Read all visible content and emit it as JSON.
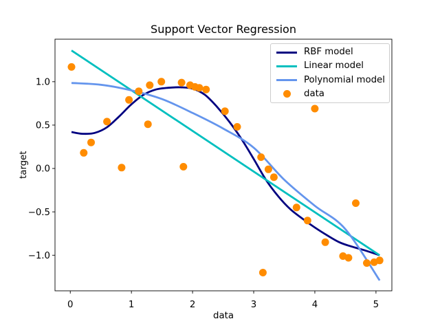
{
  "chart_data": {
    "type": "line+scatter",
    "title": "Support Vector Regression",
    "xlabel": "data",
    "ylabel": "target",
    "xlim": [
      -0.25,
      5.26
    ],
    "ylim": [
      -1.41,
      1.49
    ],
    "xticks": [
      0,
      1,
      2,
      3,
      4,
      5
    ],
    "xtick_labels": [
      "0",
      "1",
      "2",
      "3",
      "4",
      "5"
    ],
    "yticks": [
      -1.0,
      -0.5,
      0.0,
      0.5,
      1.0
    ],
    "ytick_labels": [
      "−1.0",
      "−0.5",
      "0.0",
      "0.5",
      "1.0"
    ],
    "grid": false,
    "background_color": "#ffffff",
    "spine_color": "#000000",
    "legend": {
      "position": "upper right",
      "border_color": "#cccccc",
      "entries": [
        "RBF model",
        "Linear model",
        "Polynomial model",
        "data"
      ]
    },
    "series": [
      {
        "name": "RBF model",
        "color": "#000080",
        "x": [
          0.02,
          0.2,
          0.4,
          0.6,
          0.8,
          1.0,
          1.2,
          1.4,
          1.6,
          1.8,
          2.0,
          2.2,
          2.4,
          2.6,
          2.8,
          3.0,
          3.2,
          3.4,
          3.6,
          3.8,
          4.0,
          4.2,
          4.4,
          4.6,
          4.8,
          5.06
        ],
        "y": [
          0.42,
          0.4,
          0.41,
          0.475,
          0.6,
          0.74,
          0.85,
          0.91,
          0.93,
          0.935,
          0.92,
          0.85,
          0.71,
          0.54,
          0.34,
          0.11,
          -0.13,
          -0.32,
          -0.47,
          -0.58,
          -0.68,
          -0.77,
          -0.85,
          -0.9,
          -0.94,
          -1.0
        ]
      },
      {
        "name": "Linear model",
        "color": "#00bfbf",
        "x": [
          0.02,
          5.06
        ],
        "y": [
          1.36,
          -1.0
        ]
      },
      {
        "name": "Polynomial model",
        "color": "#6495ed",
        "x": [
          0.02,
          0.5,
          1.0,
          1.5,
          2.0,
          2.5,
          3.0,
          3.5,
          4.0,
          4.5,
          5.06
        ],
        "y": [
          0.985,
          0.965,
          0.9,
          0.8,
          0.64,
          0.46,
          0.24,
          -0.13,
          -0.43,
          -0.7,
          -1.29
        ]
      }
    ],
    "scatter": {
      "name": "data",
      "color": "#ff8c00",
      "marker_radius_px": 5.5,
      "points": [
        [
          0.02,
          1.17
        ],
        [
          0.22,
          0.18
        ],
        [
          0.34,
          0.3
        ],
        [
          0.6,
          0.54
        ],
        [
          0.84,
          0.01
        ],
        [
          0.96,
          0.79
        ],
        [
          1.12,
          0.89
        ],
        [
          1.27,
          0.51
        ],
        [
          1.3,
          0.96
        ],
        [
          1.49,
          1.0
        ],
        [
          1.82,
          0.99
        ],
        [
          1.85,
          0.02
        ],
        [
          1.96,
          0.96
        ],
        [
          2.04,
          0.94
        ],
        [
          2.11,
          0.93
        ],
        [
          2.22,
          0.91
        ],
        [
          2.53,
          0.66
        ],
        [
          2.73,
          0.48
        ],
        [
          3.12,
          0.13
        ],
        [
          3.15,
          -1.2
        ],
        [
          3.24,
          -0.01
        ],
        [
          3.33,
          -0.1
        ],
        [
          3.7,
          -0.45
        ],
        [
          3.88,
          -0.6
        ],
        [
          4.0,
          0.69
        ],
        [
          4.17,
          -0.85
        ],
        [
          4.46,
          -1.01
        ],
        [
          4.55,
          -1.03
        ],
        [
          4.67,
          -0.4
        ],
        [
          4.85,
          -1.09
        ],
        [
          4.97,
          -1.08
        ],
        [
          5.06,
          -1.06
        ]
      ]
    }
  }
}
